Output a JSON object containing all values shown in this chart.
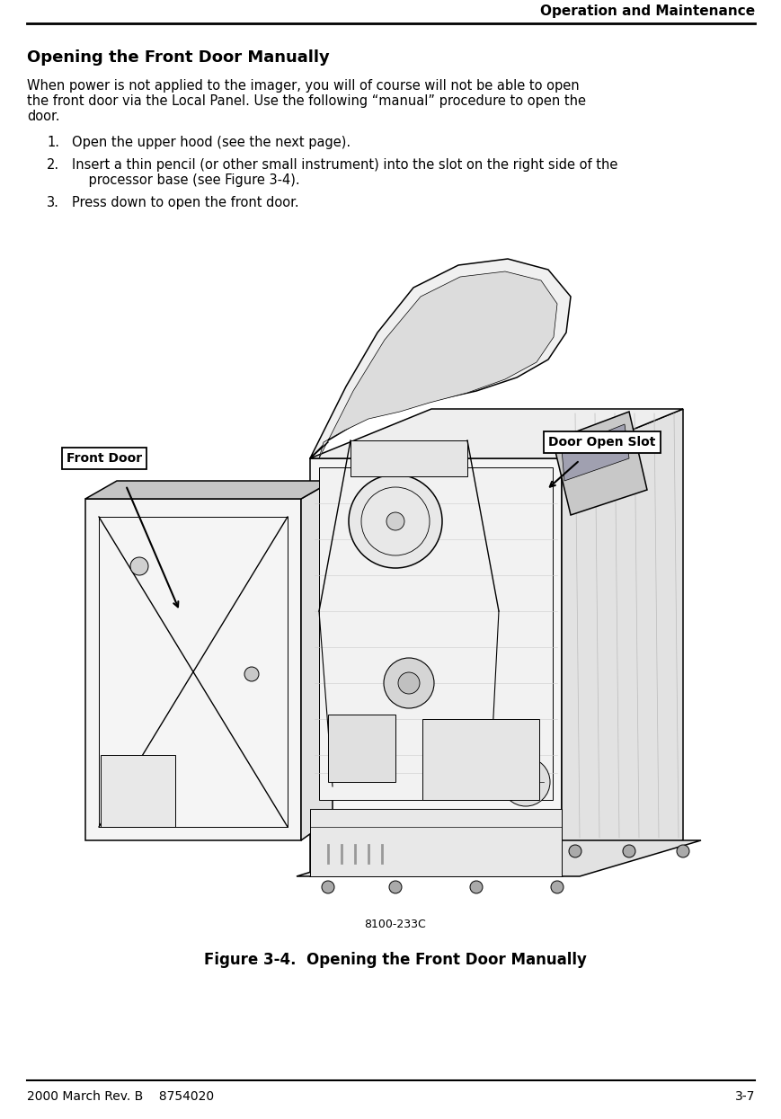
{
  "bg_color": "#ffffff",
  "header_text": "Operation and Maintenance",
  "footer_left": "2000 March Rev. B    8754020",
  "footer_right": "3-7",
  "title": "Opening the Front Door Manually",
  "body_lines": [
    "When power is not applied to the imager, you will of course will not be able to open",
    "the front door via the Local Panel. Use the following “manual” procedure to open the",
    "door."
  ],
  "step1_num": "1.",
  "step1_text": "Open the upper hood (see the next page).",
  "step2_num": "2.",
  "step2_text_line1": "Insert a thin pencil (or other small instrument) into the slot on the right side of the",
  "step2_text_line2": "    processor base (see Figure 3-4).",
  "step3_num": "3.",
  "step3_text": "Press down to open the front door.",
  "label_front_door": "Front Door",
  "label_door_slot": "Door Open Slot",
  "figure_number": "8100-233C",
  "figure_caption": "Figure 3-4.  Opening the Front Door Manually",
  "header_fontsize": 11,
  "title_fontsize": 13,
  "body_fontsize": 10.5,
  "step_fontsize": 10.5,
  "label_fontsize": 10,
  "fignum_fontsize": 9,
  "caption_fontsize": 12,
  "footer_fontsize": 10
}
